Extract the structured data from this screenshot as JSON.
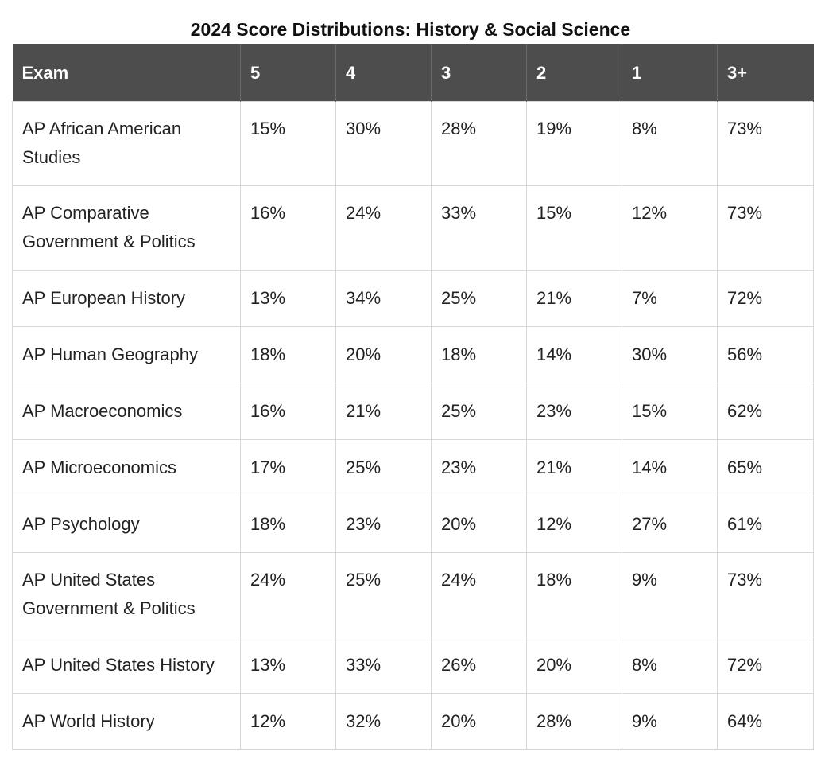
{
  "title": "2024 Score Distributions: History & Social Science",
  "table": {
    "headers": [
      "Exam",
      "5",
      "4",
      "3",
      "2",
      "1",
      "3+"
    ],
    "rows": [
      {
        "exam": "AP African American Studies",
        "s5": "15%",
        "s4": "30%",
        "s3": "28%",
        "s2": "19%",
        "s1": "8%",
        "s3plus": "73%"
      },
      {
        "exam": "AP Comparative Government & Politics",
        "s5": "16%",
        "s4": "24%",
        "s3": "33%",
        "s2": "15%",
        "s1": "12%",
        "s3plus": "73%"
      },
      {
        "exam": "AP European History",
        "s5": "13%",
        "s4": "34%",
        "s3": "25%",
        "s2": "21%",
        "s1": "7%",
        "s3plus": "72%"
      },
      {
        "exam": "AP Human Geography",
        "s5": "18%",
        "s4": "20%",
        "s3": "18%",
        "s2": "14%",
        "s1": "30%",
        "s3plus": "56%"
      },
      {
        "exam": "AP Macroeconomics",
        "s5": "16%",
        "s4": "21%",
        "s3": "25%",
        "s2": "23%",
        "s1": "15%",
        "s3plus": "62%"
      },
      {
        "exam": "AP Microeconomics",
        "s5": "17%",
        "s4": "25%",
        "s3": "23%",
        "s2": "21%",
        "s1": "14%",
        "s3plus": "65%"
      },
      {
        "exam": "AP Psychology",
        "s5": "18%",
        "s4": "23%",
        "s3": "20%",
        "s2": "12%",
        "s1": "27%",
        "s3plus": "61%"
      },
      {
        "exam": "AP United States Government & Politics",
        "s5": "24%",
        "s4": "25%",
        "s3": "24%",
        "s2": "18%",
        "s1": "9%",
        "s3plus": "73%"
      },
      {
        "exam": "AP United States History",
        "s5": "13%",
        "s4": "33%",
        "s3": "26%",
        "s2": "20%",
        "s1": "8%",
        "s3plus": "72%"
      },
      {
        "exam": "AP World History",
        "s5": "12%",
        "s4": "32%",
        "s3": "20%",
        "s2": "28%",
        "s1": "9%",
        "s3plus": "64%"
      }
    ]
  },
  "colors": {
    "header_bg": "#4d4d4d",
    "header_text": "#ffffff",
    "border": "#d8d8d8"
  }
}
